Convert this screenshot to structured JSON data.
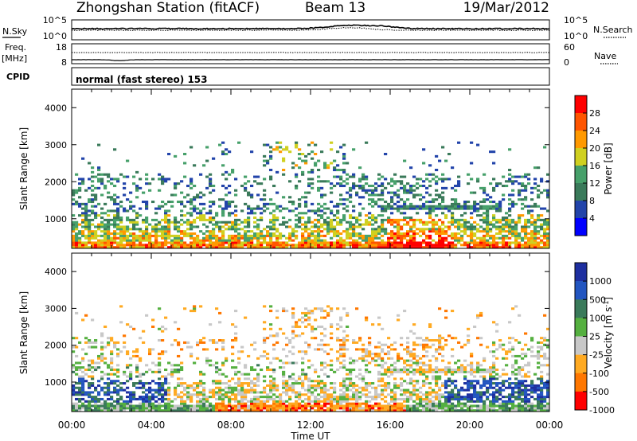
{
  "header": {
    "station": "Zhongshan Station (fitACF)",
    "beam": "Beam 13",
    "date": "19/Mar/2012"
  },
  "strip_panels": {
    "nsky_label": "N.Sky",
    "nsky_ticks": [
      "10^5",
      "10^0"
    ],
    "nsearch_label": "N.Search",
    "nsearch_ticks": [
      "10^5",
      "10^0"
    ],
    "freq_label_1": "Freq.",
    "freq_label_2": "[MHz]",
    "freq_ticks": [
      "18",
      "8"
    ],
    "nave_label": "Nave",
    "nave_ticks": [
      "60",
      "0"
    ],
    "cpid_label": "CPID",
    "cpid_value": "normal (fast stereo) 153"
  },
  "colors": {
    "power_scale": [
      "#0000ff",
      "#2244aa",
      "#3a7a5a",
      "#46a06a",
      "#d0d020",
      "#ff9900",
      "#ff5500",
      "#ff0000"
    ],
    "velocity_scale": [
      "#1e2fa0",
      "#2255c0",
      "#3a7a5a",
      "#55b040",
      "#c8c8c8",
      "#ffaa22",
      "#ff7700",
      "#ff0000"
    ]
  },
  "chart_data": [
    {
      "type": "heatmap",
      "name": "power",
      "ylabel": "Slant Range [km]",
      "y_ticks": [
        "1000",
        "2000",
        "3000",
        "4000"
      ],
      "ylim": [
        200,
        4500
      ],
      "colorbar_title": "Power [dB]",
      "colorbar_ticks": [
        "4",
        "8",
        "12",
        "16",
        "20",
        "24",
        "28"
      ]
    },
    {
      "type": "heatmap",
      "name": "velocity",
      "ylabel": "Slant Range [km]",
      "y_ticks": [
        "1000",
        "2000",
        "3000",
        "4000"
      ],
      "ylim": [
        200,
        4500
      ],
      "colorbar_title": "Velocity [m s^-1]",
      "colorbar_ticks": [
        "1000",
        "500",
        "100",
        "25",
        "-25",
        "-100",
        "-500",
        "-1000"
      ]
    }
  ],
  "x_axis": {
    "label": "Time UT",
    "ticks": [
      "00:00",
      "04:00",
      "08:00",
      "12:00",
      "16:00",
      "20:00",
      "00:00"
    ]
  }
}
